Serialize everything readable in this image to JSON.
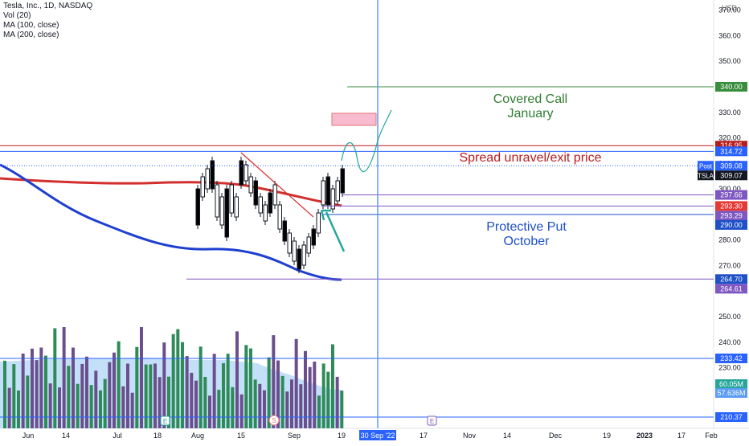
{
  "legend": {
    "title": "Tesla, Inc., 1D, NASDAQ",
    "lines": [
      "Vol (20)",
      "MA (100, close)",
      "MA (200, close)"
    ]
  },
  "currency": "USD",
  "annotations": {
    "covered_call": [
      "Covered Call",
      "January"
    ],
    "spread": "Spread unravel/exit price",
    "protective_put": [
      "Protective Put",
      "October"
    ]
  },
  "chart_data": {
    "type": "candlestick",
    "y_axis": {
      "scale": "linear",
      "ylim": [
        208,
        375
      ],
      "ticks": [
        210,
        220,
        230,
        240,
        250,
        260,
        270,
        280,
        290,
        300,
        310,
        320,
        330,
        340,
        350,
        360,
        370
      ]
    },
    "x_axis": {
      "tick_labels": [
        "Jun",
        "14",
        "Jul",
        "18",
        "Aug",
        "15",
        "Sep",
        "19",
        "30 Sep '22",
        "17",
        "Nov",
        "14",
        "Dec",
        "19",
        "2023",
        "17",
        "Feb"
      ]
    },
    "price_labels": [
      {
        "value": "340.00",
        "color": "#388e3c"
      },
      {
        "value": "316.95",
        "color": "#b71c1c"
      },
      {
        "value": "314.72",
        "color": "#2962ff"
      },
      {
        "value": "309.08",
        "color": "#2962ff",
        "prefix": "Post"
      },
      {
        "value": "309.07",
        "color": "#131722",
        "prefix": "TSLA"
      },
      {
        "value": "297.66",
        "color": "#7e57c2"
      },
      {
        "value": "293.30",
        "color": "#e53935"
      },
      {
        "value": "293.29",
        "color": "#7e57c2"
      },
      {
        "value": "290.00",
        "color": "#1e50c8"
      },
      {
        "value": "264.70",
        "color": "#1e50c8"
      },
      {
        "value": "264.61",
        "color": "#7e57c2"
      },
      {
        "value": "233.42",
        "color": "#2962ff"
      },
      {
        "value": "60.05M",
        "color": "#26a69a"
      },
      {
        "value": "57.636M",
        "color": "#5b9cf6"
      },
      {
        "value": "210.37",
        "color": "#2962ff"
      }
    ],
    "series": [
      {
        "name": "MA (100, close)",
        "color": "#d32f2f"
      },
      {
        "name": "MA (200, close)",
        "color": "#1e3fd0"
      },
      {
        "name": "Vol (20)",
        "color": "#26a69a"
      }
    ],
    "markers": [
      "E",
      "S",
      "E"
    ],
    "colors": {
      "up": "#ffffff",
      "down": "#000000",
      "vol_up": "#2e8b57",
      "vol_down": "#6b4e8c"
    }
  }
}
